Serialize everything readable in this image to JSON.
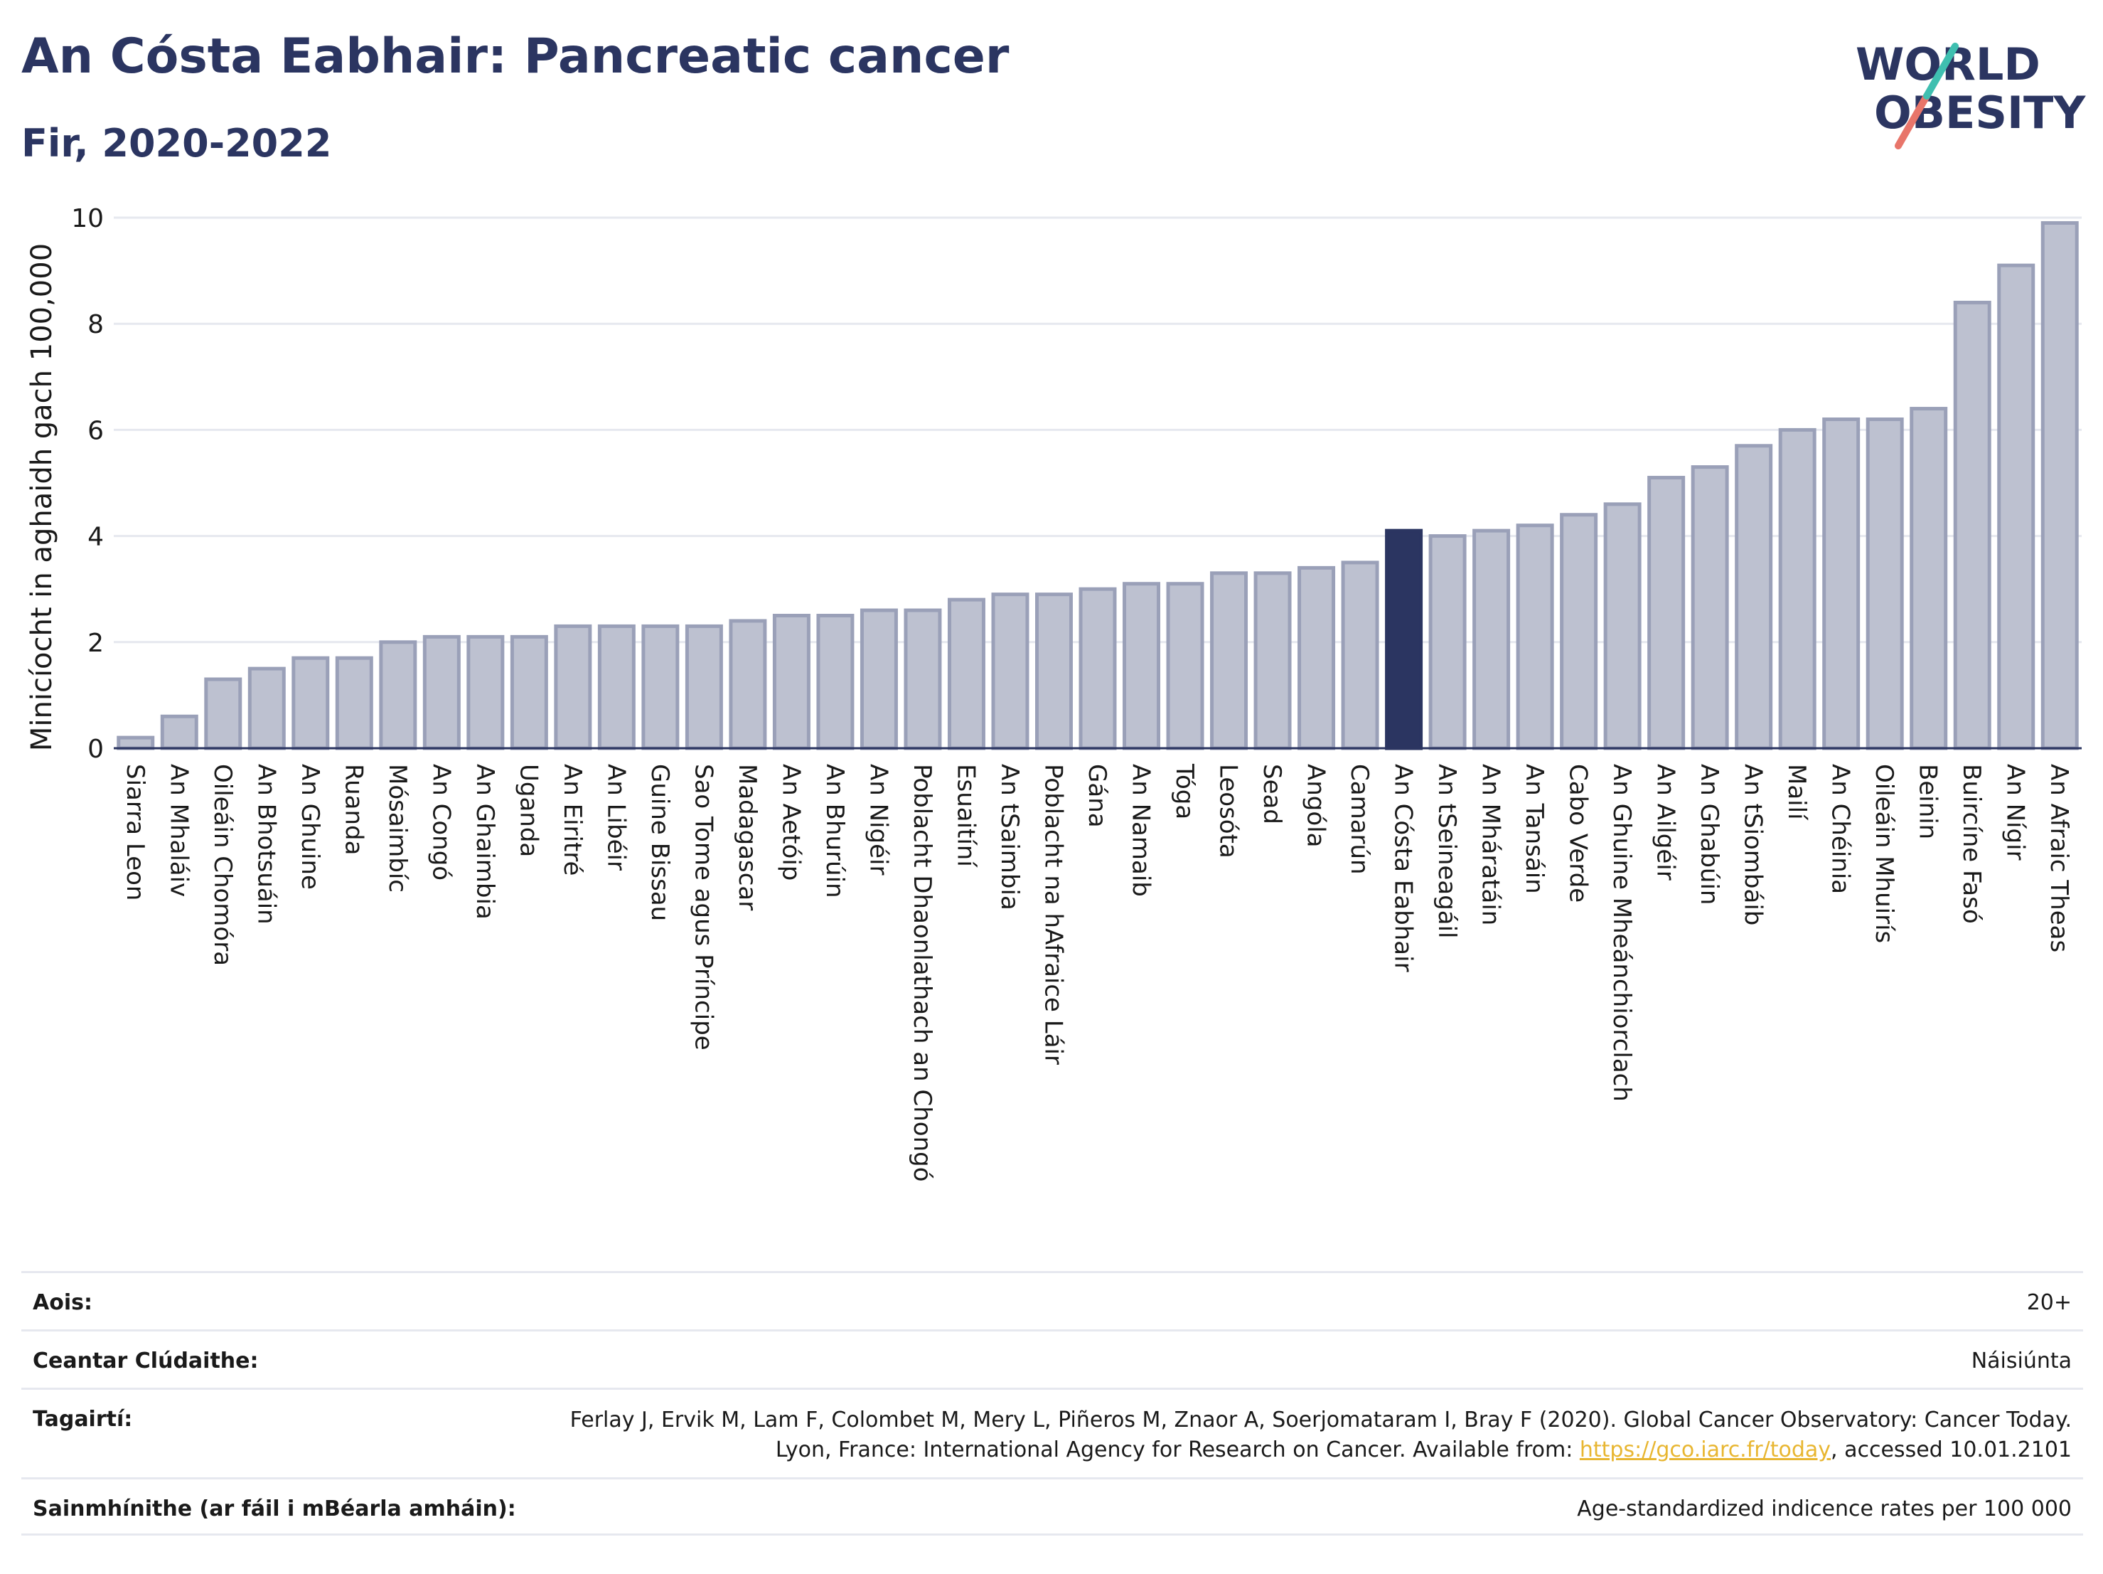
{
  "header": {
    "title": "An Cósta Eabhair: Pancreatic cancer",
    "subtitle": "Fir, 2020-2022"
  },
  "logo": {
    "line1": "WORLD",
    "line2": "OBESITY"
  },
  "colors": {
    "bar": "#bdc1d0",
    "bar_stroke": "#9aa0b8",
    "highlight": "#2b3561",
    "grid": "#e6e8ef"
  },
  "chart_data": {
    "type": "bar",
    "ylabel": "Minicíocht in aghaidh gach 100,000",
    "ylim": [
      0,
      10
    ],
    "yticks": [
      0,
      2,
      4,
      6,
      8,
      10
    ],
    "highlight": "An Cósta Eabhair",
    "categories": [
      "Siarra Leon",
      "An Mhaláiv",
      "Oileáin Chomóra",
      "An Bhotsuáin",
      "An Ghuine",
      "Ruanda",
      "Mósaimbíc",
      "An Congó",
      "An Ghaimbia",
      "Uganda",
      "An Eiritré",
      "An Libéir",
      "Guine Bissau",
      "Sao Tome agus Príncipe",
      "Madagascar",
      "An Aetóip",
      "An Bhurúin",
      "An Nigéir",
      "Poblacht Dhaonlathach an Chongó",
      "Esuaitíní",
      "An tSaimbia",
      "Poblacht na hAfraice Láir",
      "Gána",
      "An Namaib",
      "Tóga",
      "Leosóta",
      "Sead",
      "Angóla",
      "Camarún",
      "An Cósta Eabhair",
      "An tSeineagáil",
      "An Mháratáin",
      "An Tansáin",
      "Cabo Verde",
      "An Ghuine Mheánchiorclach",
      "An Ailgéir",
      "An Ghabúin",
      "An tSiombáib",
      "Mailí",
      "An Chéinia",
      "Oileáin Mhuirís",
      "Beinin",
      "Buircíne Fasó",
      "An Nígir",
      "An Afraic Theas"
    ],
    "values": [
      0.2,
      0.6,
      1.3,
      1.5,
      1.7,
      1.7,
      2.0,
      2.1,
      2.1,
      2.1,
      2.3,
      2.3,
      2.3,
      2.3,
      2.4,
      2.5,
      2.5,
      2.6,
      2.6,
      2.8,
      2.9,
      2.9,
      3.0,
      3.1,
      3.1,
      3.3,
      3.3,
      3.4,
      3.5,
      4.1,
      4.0,
      4.1,
      4.2,
      4.4,
      4.6,
      5.1,
      5.3,
      5.7,
      6.0,
      6.2,
      6.2,
      6.4,
      8.4,
      9.1,
      9.9
    ]
  },
  "footer": {
    "age_label": "Aois:",
    "age_value": "20+",
    "area_label": "Ceantar Clúdaithe:",
    "area_value": "Náisiúnta",
    "ref_label": "Tagairtí:",
    "ref_text_1": "Ferlay J, Ervik M, Lam F, Colombet M, Mery L, Piñeros M, Znaor A, Soerjomataram I, Bray F (2020). Global Cancer Observatory: Cancer Today. Lyon, France: International Agency for Research on Cancer. Available from: ",
    "ref_link": "https://gco.iarc.fr/today",
    "ref_text_2": ", accessed 10.01.2101",
    "def_label": "Sainmhínithe (ar fáil i mBéarla amháin):",
    "def_value": "Age-standardized indicence rates per 100 000"
  }
}
